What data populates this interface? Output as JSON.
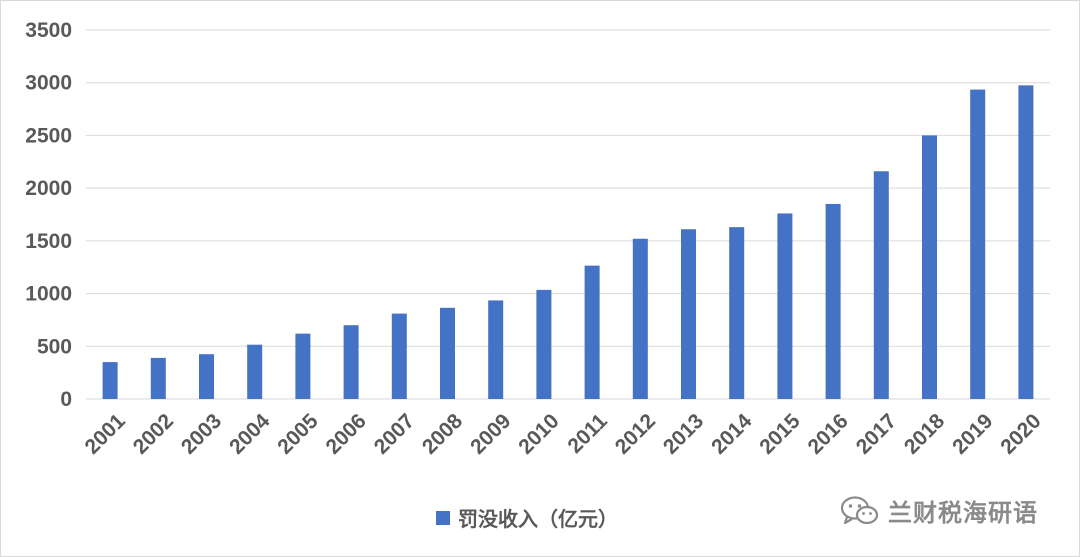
{
  "chart_data": {
    "type": "bar",
    "title": "",
    "xlabel": "",
    "ylabel": "",
    "ylim": [
      0,
      3500
    ],
    "yticks": [
      0,
      500,
      1000,
      1500,
      2000,
      2500,
      3000,
      3500
    ],
    "grid": true,
    "legend_position": "bottom",
    "categories": [
      "2001",
      "2002",
      "2003",
      "2004",
      "2005",
      "2006",
      "2007",
      "2008",
      "2009",
      "2010",
      "2011",
      "2012",
      "2013",
      "2014",
      "2015",
      "2016",
      "2017",
      "2018",
      "2019",
      "2020"
    ],
    "series": [
      {
        "name": "罚没收入（亿元）",
        "color": "#4472c4",
        "values": [
          350,
          390,
          425,
          515,
          620,
          700,
          810,
          865,
          935,
          1035,
          1265,
          1520,
          1610,
          1630,
          1760,
          1850,
          2160,
          2500,
          2935,
          2975
        ]
      }
    ]
  },
  "watermark": {
    "text": "兰财税海研语",
    "icon": "wechat-icon"
  }
}
